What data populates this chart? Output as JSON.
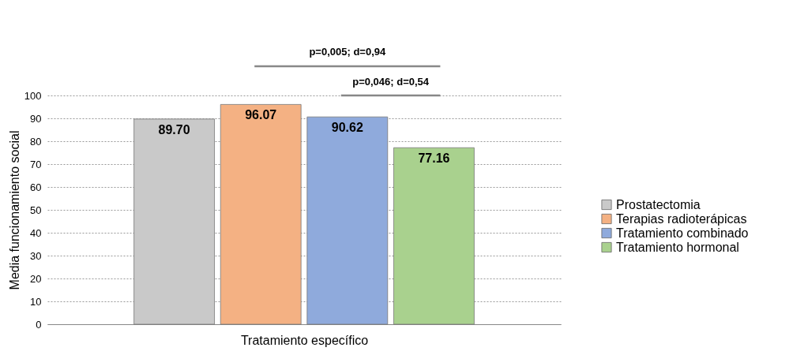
{
  "chart_data": {
    "type": "bar",
    "xlabel": "Tratamiento específico",
    "ylabel": "Media funcionamiento social",
    "categories": [
      null
    ],
    "series": [
      {
        "name": "Prostatectomia",
        "color": "#c9c9c9",
        "values": [
          89.7
        ],
        "value_labels": [
          "89.70"
        ]
      },
      {
        "name": "Terapias radioterápicas",
        "color": "#f4b183",
        "values": [
          96.07
        ],
        "value_labels": [
          "96.07"
        ]
      },
      {
        "name": "Tratamiento combinado",
        "color": "#8faadc",
        "values": [
          90.62
        ],
        "value_labels": [
          "90.62"
        ]
      },
      {
        "name": "Tratamiento hormonal",
        "color": "#a9d18e",
        "values": [
          77.16
        ],
        "value_labels": [
          "77.16"
        ]
      }
    ],
    "ylim": [
      0,
      100
    ],
    "yticks": [
      0,
      10,
      20,
      30,
      40,
      50,
      60,
      70,
      80,
      90,
      100
    ],
    "grid": "y",
    "legend": "right",
    "annotations": [
      "p=0,005; d=0,94",
      "p=0,046; d=0,54"
    ]
  }
}
